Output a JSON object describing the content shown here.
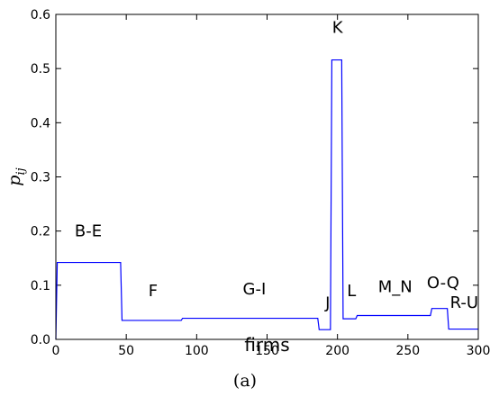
{
  "caption": "(a)",
  "chart_data": {
    "type": "line",
    "xlabel": "firms",
    "ylabel": "p",
    "ylabel_subscript": "ij",
    "xlim": [
      0,
      300
    ],
    "ylim": [
      0,
      0.6
    ],
    "x_ticks": [
      0,
      50,
      100,
      150,
      200,
      250,
      300
    ],
    "y_ticks": [
      0.0,
      0.1,
      0.2,
      0.3,
      0.4,
      0.5,
      0.6
    ],
    "y_tick_labels": [
      "0.0",
      "0.1",
      "0.2",
      "0.3",
      "0.4",
      "0.5",
      "0.6"
    ],
    "grid": false,
    "legend": "none",
    "line_color": "#0000ff",
    "series": [
      {
        "x": [
          0,
          1,
          46,
          47,
          89,
          90,
          186,
          187,
          195,
          196,
          200,
          201,
          203,
          204,
          213,
          214,
          266,
          267,
          278,
          279,
          300
        ],
        "y": [
          0.0,
          0.142,
          0.142,
          0.035,
          0.035,
          0.039,
          0.039,
          0.018,
          0.018,
          0.516,
          0.516,
          0.516,
          0.516,
          0.038,
          0.038,
          0.044,
          0.044,
          0.057,
          0.057,
          0.019,
          0.019
        ]
      }
    ],
    "annotations": [
      {
        "text": "B-E",
        "x": 23,
        "y": 0.19
      },
      {
        "text": "F",
        "x": 69,
        "y": 0.08
      },
      {
        "text": "G-I",
        "x": 141,
        "y": 0.083
      },
      {
        "text": "J",
        "x": 193,
        "y": 0.057
      },
      {
        "text": "K",
        "x": 200,
        "y": 0.566
      },
      {
        "text": "L",
        "x": 210,
        "y": 0.08
      },
      {
        "text": "M_N",
        "x": 241,
        "y": 0.087
      },
      {
        "text": "O-Q",
        "x": 275,
        "y": 0.095
      },
      {
        "text": "R-U",
        "x": 290,
        "y": 0.058
      }
    ]
  }
}
